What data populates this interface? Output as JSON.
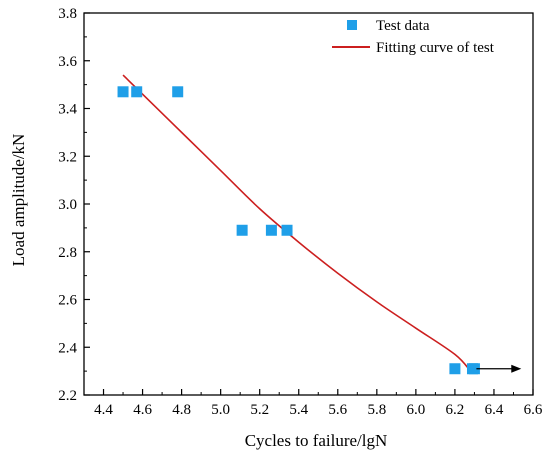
{
  "chart_data": {
    "type": "scatter",
    "title": "",
    "xlabel": "Cycles to failure/lgN",
    "ylabel": "Load amplitude/kN",
    "xlim": [
      4.3,
      6.6
    ],
    "ylim": [
      2.2,
      3.8
    ],
    "xticks": [
      "4.4",
      "4.6",
      "4.8",
      "5.0",
      "5.2",
      "5.4",
      "5.6",
      "5.8",
      "6.0",
      "6.2",
      "6.4",
      "6.6"
    ],
    "yticks": [
      "2.2",
      "2.4",
      "2.6",
      "2.8",
      "3.0",
      "3.2",
      "3.4",
      "3.6",
      "3.8"
    ],
    "grid": false,
    "legend_position": "top-right",
    "series": [
      {
        "name": "Test data",
        "type": "scatter",
        "marker": "square",
        "color": "#1f9fe8",
        "points": [
          {
            "x": 4.5,
            "y": 3.47
          },
          {
            "x": 4.57,
            "y": 3.47
          },
          {
            "x": 4.78,
            "y": 3.47
          },
          {
            "x": 5.11,
            "y": 2.89
          },
          {
            "x": 5.26,
            "y": 2.89
          },
          {
            "x": 5.34,
            "y": 2.89
          },
          {
            "x": 6.2,
            "y": 2.31
          },
          {
            "x": 6.29,
            "y": 2.31
          },
          {
            "x": 6.3,
            "y": 2.31
          }
        ]
      },
      {
        "name": "Fitting curve of test",
        "type": "line",
        "color": "#cc1f1f",
        "points": [
          {
            "x": 4.5,
            "y": 3.54
          },
          {
            "x": 4.6,
            "y": 3.46
          },
          {
            "x": 4.8,
            "y": 3.3
          },
          {
            "x": 5.0,
            "y": 3.14
          },
          {
            "x": 5.2,
            "y": 2.98
          },
          {
            "x": 5.4,
            "y": 2.84
          },
          {
            "x": 5.6,
            "y": 2.71
          },
          {
            "x": 5.8,
            "y": 2.59
          },
          {
            "x": 6.0,
            "y": 2.48
          },
          {
            "x": 6.2,
            "y": 2.37
          },
          {
            "x": 6.28,
            "y": 2.3
          }
        ]
      }
    ],
    "annotations": [
      {
        "type": "arrow",
        "direction": "right",
        "from": {
          "x": 6.31,
          "y": 2.31
        },
        "to": {
          "x": 6.54,
          "y": 2.31
        },
        "color": "#000000",
        "note": "run-out"
      }
    ]
  }
}
